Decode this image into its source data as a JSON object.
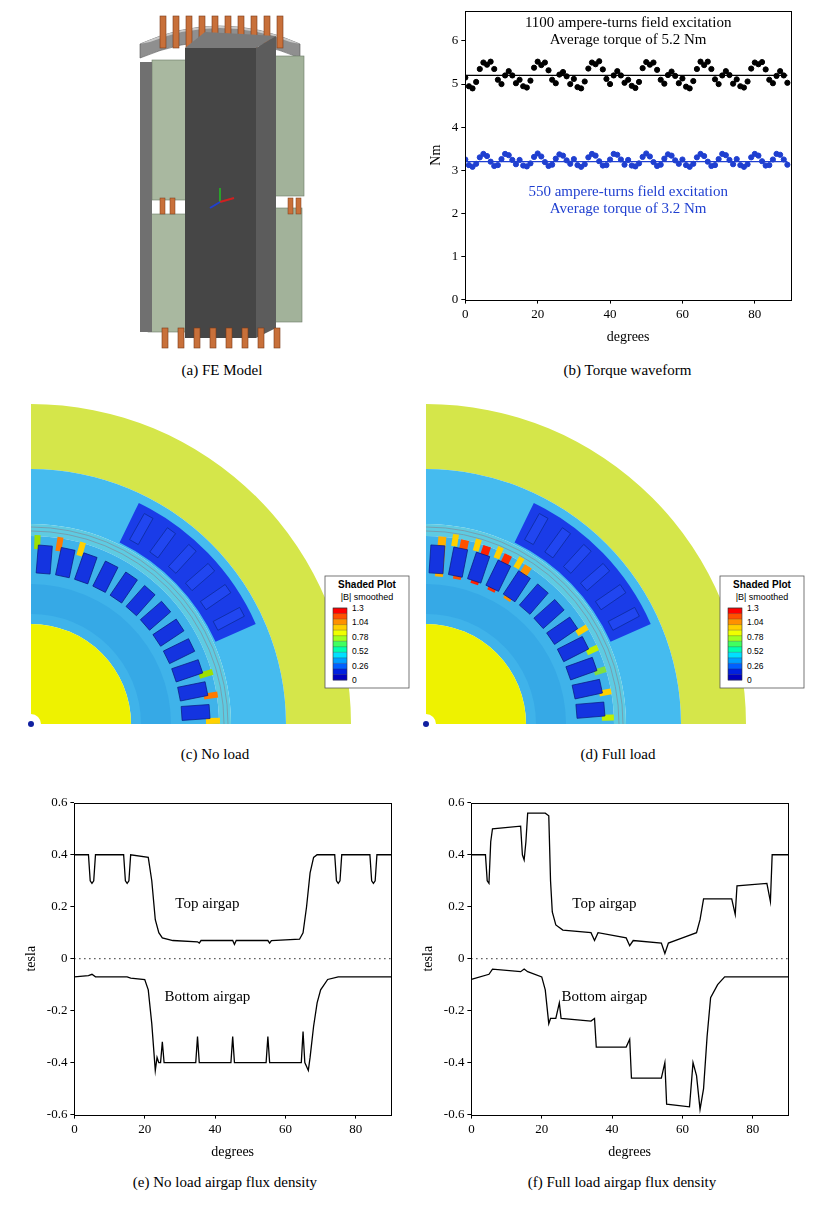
{
  "chart_data": [
    {
      "type": "scatter",
      "caption": "(b) Torque waveform",
      "x_label": "degrees",
      "y_label": "Nm",
      "xlim": [
        0,
        90
      ],
      "xticks": [
        0,
        20,
        40,
        60,
        80
      ],
      "ylim": [
        0,
        6.7
      ],
      "yticks": [
        0,
        1,
        2,
        3,
        4,
        5,
        6
      ],
      "grid": false,
      "annotations": [
        {
          "text": "1100 ampere-turns field excitation",
          "color": "#000000"
        },
        {
          "text": "Average torque of 5.2 Nm",
          "color": "#000000"
        },
        {
          "text": "550 ampere-turns field excitation",
          "color": "#1f3fd0"
        },
        {
          "text": "Average torque of 3.2 Nm",
          "color": "#1f3fd0"
        }
      ],
      "series": [
        {
          "color": "#000000",
          "marker": "circle",
          "x": [
            0,
            1,
            2,
            3,
            4,
            5,
            6,
            7,
            8,
            9,
            10,
            11,
            12,
            13,
            14,
            15,
            16,
            17,
            18,
            19,
            20,
            21,
            22,
            23,
            24,
            25,
            26,
            27,
            28,
            29,
            30,
            31,
            32,
            33,
            34,
            35,
            36,
            37,
            38,
            39,
            40,
            41,
            42,
            43,
            44,
            45,
            46,
            47,
            48,
            49,
            50,
            51,
            52,
            53,
            54,
            55,
            56,
            57,
            58,
            59,
            60,
            61,
            62,
            63,
            64,
            65,
            66,
            67,
            68,
            69,
            70,
            71,
            72,
            73,
            74,
            75,
            76,
            77,
            78,
            79,
            80,
            81,
            82,
            83,
            84,
            85,
            86,
            87,
            88,
            89
          ],
          "values": [
            5.15,
            4.95,
            4.9,
            5.05,
            5.35,
            5.5,
            5.45,
            5.52,
            5.35,
            5.1,
            5.0,
            5.2,
            5.3,
            5.2,
            5.02,
            5.1,
            4.95,
            4.92,
            5.08,
            5.38,
            5.52,
            5.44,
            5.5,
            5.32,
            5.1,
            5.02,
            5.22,
            5.28,
            5.18,
            5.0,
            5.12,
            4.93,
            4.9,
            5.06,
            5.36,
            5.5,
            5.46,
            5.53,
            5.34,
            5.12,
            5.0,
            5.2,
            5.3,
            5.2,
            5.03,
            5.1,
            4.96,
            4.91,
            5.05,
            5.37,
            5.51,
            5.45,
            5.5,
            5.33,
            5.1,
            5.01,
            5.21,
            5.29,
            5.19,
            5.02,
            5.13,
            4.94,
            4.9,
            5.07,
            5.35,
            5.52,
            5.44,
            5.52,
            5.35,
            5.11,
            5.0,
            5.2,
            5.3,
            5.21,
            5.01,
            5.11,
            4.95,
            4.92,
            5.06,
            5.36,
            5.5,
            5.46,
            5.51,
            5.34,
            5.1,
            5.02,
            5.19,
            5.3,
            5.2,
            5.03
          ]
        },
        {
          "type": "line",
          "color": "#000000",
          "line_style": "solid",
          "x": [
            0,
            89
          ],
          "values": [
            5.2,
            5.2
          ]
        },
        {
          "color": "#1f3fd0",
          "marker": "circle",
          "x": [
            0,
            1,
            2,
            3,
            4,
            5,
            6,
            7,
            8,
            9,
            10,
            11,
            12,
            13,
            14,
            15,
            16,
            17,
            18,
            19,
            20,
            21,
            22,
            23,
            24,
            25,
            26,
            27,
            28,
            29,
            30,
            31,
            32,
            33,
            34,
            35,
            36,
            37,
            38,
            39,
            40,
            41,
            42,
            43,
            44,
            45,
            46,
            47,
            48,
            49,
            50,
            51,
            52,
            53,
            54,
            55,
            56,
            57,
            58,
            59,
            60,
            61,
            62,
            63,
            64,
            65,
            66,
            67,
            68,
            69,
            70,
            71,
            72,
            73,
            74,
            75,
            76,
            77,
            78,
            79,
            80,
            81,
            82,
            83,
            84,
            85,
            86,
            87,
            88,
            89
          ],
          "values": [
            3.25,
            3.12,
            3.08,
            3.15,
            3.3,
            3.38,
            3.33,
            3.2,
            3.1,
            3.12,
            3.26,
            3.38,
            3.35,
            3.24,
            3.14,
            3.24,
            3.11,
            3.09,
            3.16,
            3.31,
            3.39,
            3.32,
            3.19,
            3.1,
            3.13,
            3.27,
            3.37,
            3.34,
            3.23,
            3.15,
            3.26,
            3.12,
            3.08,
            3.14,
            3.3,
            3.38,
            3.34,
            3.21,
            3.11,
            3.12,
            3.25,
            3.38,
            3.36,
            3.25,
            3.13,
            3.24,
            3.11,
            3.09,
            3.16,
            3.31,
            3.39,
            3.32,
            3.19,
            3.1,
            3.13,
            3.27,
            3.37,
            3.34,
            3.23,
            3.15,
            3.25,
            3.12,
            3.08,
            3.15,
            3.3,
            3.38,
            3.33,
            3.2,
            3.1,
            3.12,
            3.26,
            3.38,
            3.35,
            3.24,
            3.14,
            3.26,
            3.12,
            3.08,
            3.14,
            3.3,
            3.38,
            3.34,
            3.21,
            3.11,
            3.12,
            3.25,
            3.38,
            3.36,
            3.25,
            3.13
          ]
        },
        {
          "type": "line",
          "color": "#1f3fd0",
          "line_style": "solid",
          "x": [
            0,
            89
          ],
          "values": [
            3.2,
            3.2
          ]
        }
      ]
    },
    {
      "type": "line",
      "caption": "(e) No load airgap flux density",
      "x_label": "degrees",
      "y_label": "tesla",
      "xlim": [
        0,
        90
      ],
      "xticks": [
        0,
        20,
        40,
        60,
        80
      ],
      "ylim": [
        -0.6,
        0.6
      ],
      "yticks": [
        -0.6,
        -0.4,
        -0.2,
        0,
        0.2,
        0.4,
        0.6
      ],
      "grid": false,
      "annotations": [
        {
          "text": "Top airgap",
          "color": "#000000"
        },
        {
          "text": "Bottom airgap",
          "color": "#000000"
        }
      ],
      "series": [
        {
          "color": "#000000",
          "line_style": "solid",
          "x": [
            0,
            4,
            4.5,
            5,
            5.5,
            6,
            14,
            14.5,
            15,
            15.5,
            16,
            21,
            22,
            23,
            24,
            25,
            28,
            35,
            35.5,
            36,
            45,
            45.5,
            46,
            55,
            55.5,
            56,
            64,
            65,
            66,
            67,
            68,
            69,
            74,
            74.5,
            75,
            75.5,
            76,
            84,
            84.5,
            85,
            85.5,
            86,
            90
          ],
          "values": [
            0.4,
            0.4,
            0.3,
            0.29,
            0.3,
            0.4,
            0.4,
            0.3,
            0.29,
            0.3,
            0.4,
            0.39,
            0.3,
            0.15,
            0.1,
            0.08,
            0.07,
            0.065,
            0.06,
            0.07,
            0.07,
            0.055,
            0.07,
            0.07,
            0.06,
            0.07,
            0.075,
            0.1,
            0.2,
            0.33,
            0.39,
            0.4,
            0.4,
            0.3,
            0.29,
            0.3,
            0.4,
            0.4,
            0.3,
            0.29,
            0.3,
            0.4,
            0.4
          ]
        },
        {
          "color": "#000000",
          "line_style": "solid",
          "x": [
            0,
            4,
            5,
            6,
            15,
            16,
            20,
            21,
            22,
            23,
            23.5,
            24,
            24.5,
            25,
            25.5,
            34.5,
            35,
            35.5,
            44.5,
            45,
            45.5,
            54.5,
            55,
            55.5,
            64.5,
            65,
            65.5,
            66.5,
            67,
            68,
            69,
            70,
            72,
            75,
            90
          ],
          "values": [
            -0.07,
            -0.065,
            -0.06,
            -0.07,
            -0.07,
            -0.075,
            -0.08,
            -0.12,
            -0.25,
            -0.43,
            -0.38,
            -0.4,
            -0.4,
            -0.32,
            -0.4,
            -0.4,
            -0.3,
            -0.4,
            -0.4,
            -0.3,
            -0.4,
            -0.4,
            -0.3,
            -0.4,
            -0.4,
            -0.28,
            -0.4,
            -0.43,
            -0.38,
            -0.26,
            -0.17,
            -0.12,
            -0.08,
            -0.07,
            -0.07
          ]
        },
        {
          "color": "#000000",
          "line_style": "dotted",
          "x": [
            0,
            90
          ],
          "values": [
            0,
            0
          ]
        }
      ]
    },
    {
      "type": "line",
      "caption": "(f) Full load airgap flux density",
      "x_label": "degrees",
      "y_label": "tesla",
      "xlim": [
        0,
        90
      ],
      "xticks": [
        0,
        20,
        40,
        60,
        80
      ],
      "ylim": [
        -0.6,
        0.6
      ],
      "yticks": [
        -0.6,
        -0.4,
        -0.2,
        0,
        0.2,
        0.4,
        0.6
      ],
      "grid": false,
      "annotations": [
        {
          "text": "Top airgap",
          "color": "#000000"
        },
        {
          "text": "Bottom airgap",
          "color": "#000000"
        }
      ],
      "series": [
        {
          "color": "#000000",
          "line_style": "solid",
          "x": [
            0,
            4,
            4.5,
            5,
            5.5,
            6,
            14,
            14.5,
            15,
            15.5,
            16,
            21,
            22,
            22.5,
            23,
            24,
            26,
            34,
            35,
            36,
            44,
            45,
            46,
            54,
            55,
            56,
            60,
            64,
            65,
            66,
            74,
            75,
            75.5,
            84,
            85,
            85.5,
            90
          ],
          "values": [
            0.4,
            0.4,
            0.3,
            0.29,
            0.45,
            0.5,
            0.51,
            0.4,
            0.38,
            0.45,
            0.56,
            0.56,
            0.55,
            0.3,
            0.18,
            0.13,
            0.11,
            0.1,
            0.07,
            0.1,
            0.08,
            0.05,
            0.07,
            0.06,
            0.02,
            0.06,
            0.08,
            0.1,
            0.15,
            0.23,
            0.23,
            0.17,
            0.28,
            0.29,
            0.22,
            0.4,
            0.4
          ]
        },
        {
          "color": "#000000",
          "line_style": "solid",
          "x": [
            0,
            5,
            6,
            14,
            15,
            16,
            20,
            21,
            22,
            22.5,
            24,
            25,
            25.5,
            34,
            35,
            35.5,
            44,
            45,
            45.5,
            54,
            55,
            55.5,
            62,
            63,
            64,
            65,
            66,
            67,
            68,
            70,
            72,
            90
          ],
          "values": [
            -0.08,
            -0.06,
            -0.04,
            -0.05,
            -0.04,
            -0.05,
            -0.07,
            -0.12,
            -0.25,
            -0.23,
            -0.23,
            -0.17,
            -0.23,
            -0.24,
            -0.23,
            -0.34,
            -0.34,
            -0.31,
            -0.46,
            -0.46,
            -0.4,
            -0.56,
            -0.57,
            -0.4,
            -0.45,
            -0.58,
            -0.5,
            -0.3,
            -0.15,
            -0.1,
            -0.07,
            -0.07
          ]
        },
        {
          "color": "#000000",
          "line_style": "dotted",
          "x": [
            0,
            90
          ],
          "values": [
            0,
            0
          ]
        }
      ]
    }
  ],
  "figures": [
    {
      "caption": "(a) FE Model"
    },
    {
      "caption": "(c) No load",
      "color_bar": {
        "title": "Shaded Plot",
        "label": "|B| smoothed",
        "ticks": [
          1.3,
          1.04,
          0.78,
          0.52,
          0.26,
          0
        ]
      }
    },
    {
      "caption": "(d) Full load",
      "color_bar": {
        "title": "Shaded Plot",
        "label": "|B| smoothed",
        "ticks": [
          1.3,
          1.04,
          0.78,
          0.52,
          0.26,
          0
        ]
      }
    }
  ]
}
